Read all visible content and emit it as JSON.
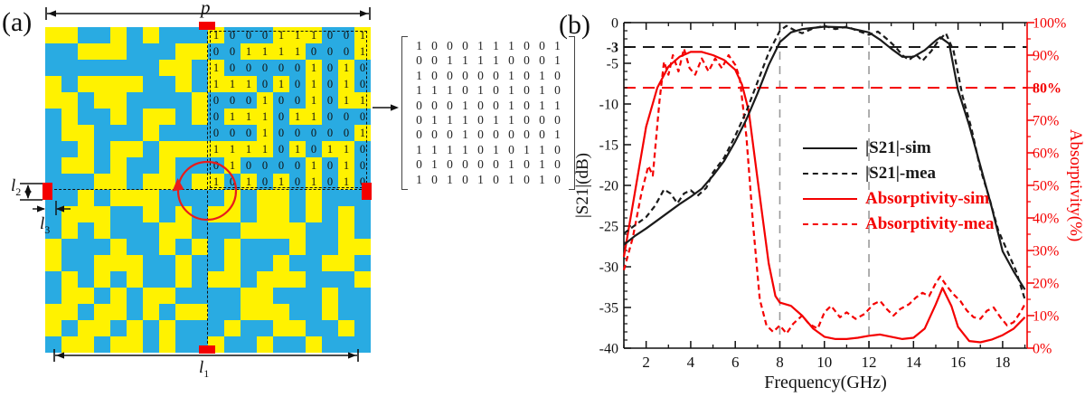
{
  "panel_a": {
    "label": "(a)",
    "colors": {
      "blue": "#29abe2",
      "yellow": "#fff200",
      "red": "#f40000"
    },
    "dims": {
      "p": "p",
      "l1": {
        "base": "l",
        "sub": "1"
      },
      "l2": {
        "base": "l",
        "sub": "2"
      },
      "l3": {
        "base": "l",
        "sub": "3"
      }
    },
    "matrix_rows": [
      "1000111001",
      "0011110001",
      "1000001010",
      "1110101010",
      "0001001011",
      "0111011000",
      "0001000001",
      "1111010110",
      "0100001010",
      "1010101010"
    ],
    "grid_rows": [
      "11001010001000111001",
      "00111000110011110001",
      "00000001101000001010",
      "10111100101110101010",
      "11011000010001001011",
      "01001011010111011000",
      "01100010000001000001",
      "00101101111111010110",
      "01101001000100001010",
      "00011011011010101010",
      "00101110000101101000",
      "01110010101101101010",
      "01010001100011110010",
      "10001001010100010011",
      "10011100100100100110",
      "01010100101101110001",
      "01101011000011000100",
      "11011010110011100100",
      "10110101000100110010",
      "01101101001001001000"
    ]
  },
  "panel_b": {
    "label": "(b)"
  },
  "chart_data": {
    "type": "line",
    "xlabel": "Frequency(GHz)",
    "ylabel_left": "|S21|(dB)",
    "ylabel_right": "Absorptivity(%)",
    "xlim": [
      1,
      19.1
    ],
    "ylim_left": [
      -40,
      0
    ],
    "ylim_right": [
      0,
      100
    ],
    "x_major_ticks": [
      2,
      4,
      6,
      8,
      10,
      12,
      14,
      16,
      18
    ],
    "x_minor_ticks": [
      1,
      3,
      5,
      7,
      9,
      11,
      13,
      15,
      17,
      19
    ],
    "y_left_ticks": [
      {
        "v": 0,
        "t": "0",
        "bold": false
      },
      {
        "v": -3,
        "t": "-3",
        "bold": true
      },
      {
        "v": -5,
        "t": "-5",
        "bold": false
      },
      {
        "v": -10,
        "t": "-10",
        "bold": false
      },
      {
        "v": -15,
        "t": "-15",
        "bold": false
      },
      {
        "v": -20,
        "t": "-20",
        "bold": false
      },
      {
        "v": -25,
        "t": "-25",
        "bold": false
      },
      {
        "v": -30,
        "t": "-30",
        "bold": false
      },
      {
        "v": -35,
        "t": "-35",
        "bold": false
      },
      {
        "v": -40,
        "t": "-40",
        "bold": false
      }
    ],
    "y_right_ticks": [
      {
        "v": 100,
        "t": "100%",
        "bold": false
      },
      {
        "v": 90,
        "t": "90%",
        "bold": false
      },
      {
        "v": 80,
        "t": "80%",
        "bold": true
      },
      {
        "v": 70,
        "t": "70%",
        "bold": false
      },
      {
        "v": 60,
        "t": "60%",
        "bold": false
      },
      {
        "v": 50,
        "t": "50%",
        "bold": false
      },
      {
        "v": 40,
        "t": "40%",
        "bold": false
      },
      {
        "v": 30,
        "t": "30%",
        "bold": false
      },
      {
        "v": 20,
        "t": "20%",
        "bold": false
      },
      {
        "v": 10,
        "t": "10%",
        "bold": false
      },
      {
        "v": 0,
        "t": "0%",
        "bold": false
      }
    ],
    "grid": "off",
    "vertical_gridlines_ghz": [
      8,
      12
    ],
    "reference_lines": [
      {
        "axis": "left",
        "value": -3,
        "color": "#1a1a1a"
      },
      {
        "axis": "right",
        "value": 80,
        "color": "#f40000"
      }
    ],
    "legend_position": "center-right",
    "legend": [
      {
        "label": "|S21|-sim",
        "color": "#1a1a1a",
        "dash": false
      },
      {
        "label": "|S21|-mea",
        "color": "#1a1a1a",
        "dash": true
      },
      {
        "label": "Absorptivity-sim",
        "color": "#f40000",
        "dash": false
      },
      {
        "label": "Absorptivity-mea",
        "color": "#f40000",
        "dash": true
      }
    ],
    "series": [
      {
        "name": "Absorptivity-mea",
        "axis": "right",
        "color": "#f40000",
        "dash": true,
        "points": [
          [
            1,
            24
          ],
          [
            1.4,
            34
          ],
          [
            1.8,
            48
          ],
          [
            2.1,
            56
          ],
          [
            2.3,
            53
          ],
          [
            2.6,
            76
          ],
          [
            2.8,
            88
          ],
          [
            3,
            84
          ],
          [
            3.2,
            90
          ],
          [
            3.45,
            85
          ],
          [
            3.7,
            92
          ],
          [
            3.95,
            86
          ],
          [
            4.2,
            84
          ],
          [
            4.5,
            89
          ],
          [
            4.8,
            85
          ],
          [
            5.1,
            89
          ],
          [
            5.4,
            86
          ],
          [
            5.7,
            90
          ],
          [
            6,
            87
          ],
          [
            6.2,
            83
          ],
          [
            6.5,
            65
          ],
          [
            6.8,
            38
          ],
          [
            7.1,
            15
          ],
          [
            7.4,
            7
          ],
          [
            7.7,
            5
          ],
          [
            8,
            7
          ],
          [
            8.3,
            4.5
          ],
          [
            8.6,
            7.5
          ],
          [
            9,
            10
          ],
          [
            9.3,
            7.5
          ],
          [
            9.7,
            6
          ],
          [
            10,
            11
          ],
          [
            10.3,
            13
          ],
          [
            10.7,
            9.5
          ],
          [
            11,
            11
          ],
          [
            11.4,
            9
          ],
          [
            11.8,
            10.5
          ],
          [
            12.2,
            13.5
          ],
          [
            12.5,
            14.5
          ],
          [
            12.8,
            12
          ],
          [
            13.1,
            10
          ],
          [
            13.4,
            12
          ],
          [
            13.8,
            13.5
          ],
          [
            14.1,
            15.5
          ],
          [
            14.4,
            17
          ],
          [
            14.7,
            16
          ],
          [
            15,
            20
          ],
          [
            15.2,
            22
          ],
          [
            15.5,
            19
          ],
          [
            15.8,
            16.5
          ],
          [
            16.1,
            14.5
          ],
          [
            16.4,
            11.5
          ],
          [
            16.7,
            9.5
          ],
          [
            17,
            9
          ],
          [
            17.3,
            11.5
          ],
          [
            17.6,
            12.5
          ],
          [
            17.9,
            9.5
          ],
          [
            18.2,
            7
          ],
          [
            18.5,
            8
          ],
          [
            18.8,
            11
          ],
          [
            19,
            13.5
          ]
        ]
      },
      {
        "name": "Absorptivity-sim",
        "axis": "right",
        "color": "#f40000",
        "dash": false,
        "points": [
          [
            1,
            28
          ],
          [
            1.5,
            48
          ],
          [
            2,
            68
          ],
          [
            2.5,
            80
          ],
          [
            3,
            86.5
          ],
          [
            3.5,
            89.5
          ],
          [
            4,
            91
          ],
          [
            4.5,
            91
          ],
          [
            5,
            90
          ],
          [
            5.5,
            88.5
          ],
          [
            6,
            85.5
          ],
          [
            6.3,
            81
          ],
          [
            6.6,
            73
          ],
          [
            7,
            52
          ],
          [
            7.5,
            26
          ],
          [
            7.8,
            16
          ],
          [
            8,
            14
          ],
          [
            8.5,
            13
          ],
          [
            9,
            10
          ],
          [
            9.5,
            6
          ],
          [
            10,
            3.5
          ],
          [
            10.5,
            2.8
          ],
          [
            11,
            2.8
          ],
          [
            11.5,
            3.2
          ],
          [
            12,
            3.8
          ],
          [
            12.5,
            4.2
          ],
          [
            13,
            3.5
          ],
          [
            13.5,
            2.8
          ],
          [
            14,
            3.2
          ],
          [
            14.5,
            6
          ],
          [
            15,
            13.5
          ],
          [
            15.3,
            18.5
          ],
          [
            15.7,
            13
          ],
          [
            16,
            6.5
          ],
          [
            16.5,
            2.2
          ],
          [
            17,
            1.8
          ],
          [
            17.5,
            2.6
          ],
          [
            18,
            4
          ],
          [
            18.5,
            6
          ],
          [
            19,
            9.5
          ]
        ]
      },
      {
        "name": "|S21|-mea",
        "axis": "left",
        "color": "#1a1a1a",
        "dash": true,
        "points": [
          [
            1,
            -25.9
          ],
          [
            1.5,
            -24.9
          ],
          [
            2,
            -23.9
          ],
          [
            2.4,
            -22.5
          ],
          [
            2.8,
            -20.5
          ],
          [
            3.1,
            -21
          ],
          [
            3.4,
            -22.2
          ],
          [
            3.7,
            -21
          ],
          [
            4,
            -20.6
          ],
          [
            4.3,
            -21.3
          ],
          [
            4.7,
            -20.3
          ],
          [
            5,
            -18.4
          ],
          [
            5.5,
            -16.6
          ],
          [
            6,
            -13.9
          ],
          [
            6.5,
            -10.9
          ],
          [
            7,
            -7.3
          ],
          [
            7.5,
            -3.7
          ],
          [
            8,
            -1
          ],
          [
            8.3,
            -0.4
          ],
          [
            8.7,
            -1
          ],
          [
            9,
            -1.3
          ],
          [
            9.5,
            -0.7
          ],
          [
            10,
            -0.4
          ],
          [
            10.5,
            -0.8
          ],
          [
            11,
            -0.5
          ],
          [
            11.5,
            -1
          ],
          [
            12,
            -1.5
          ],
          [
            12.4,
            -1.1
          ],
          [
            12.8,
            -2
          ],
          [
            13.2,
            -3
          ],
          [
            13.5,
            -4
          ],
          [
            13.8,
            -4.6
          ],
          [
            14.1,
            -3.9
          ],
          [
            14.4,
            -4.7
          ],
          [
            14.8,
            -3.5
          ],
          [
            15.1,
            -2.3
          ],
          [
            15.45,
            -1.3
          ],
          [
            15.8,
            -3.5
          ],
          [
            16.2,
            -9
          ],
          [
            16.6,
            -13
          ],
          [
            17,
            -18
          ],
          [
            17.4,
            -21.5
          ],
          [
            17.8,
            -25.5
          ],
          [
            18.2,
            -28
          ],
          [
            18.6,
            -30.5
          ],
          [
            19,
            -34
          ]
        ]
      },
      {
        "name": "|S21|-sim",
        "axis": "left",
        "color": "#1a1a1a",
        "dash": false,
        "points": [
          [
            1,
            -27.3
          ],
          [
            1.5,
            -26.2
          ],
          [
            2,
            -25.3
          ],
          [
            2.5,
            -24.3
          ],
          [
            3,
            -23.3
          ],
          [
            3.5,
            -22.3
          ],
          [
            4,
            -21.4
          ],
          [
            4.5,
            -20.4
          ],
          [
            5,
            -18.8
          ],
          [
            5.5,
            -17
          ],
          [
            6,
            -14.6
          ],
          [
            6.5,
            -11.9
          ],
          [
            7,
            -8.7
          ],
          [
            7.5,
            -5.2
          ],
          [
            8,
            -2.4
          ],
          [
            8.5,
            -1.2
          ],
          [
            9,
            -0.8
          ],
          [
            10,
            -0.5
          ],
          [
            11,
            -0.6
          ],
          [
            12,
            -1.2
          ],
          [
            12.5,
            -2.1
          ],
          [
            13,
            -3.2
          ],
          [
            13.5,
            -4.2
          ],
          [
            14,
            -4.2
          ],
          [
            14.5,
            -3.4
          ],
          [
            15,
            -2.2
          ],
          [
            15.2,
            -1.8
          ],
          [
            15.6,
            -2.6
          ],
          [
            16,
            -8.3
          ],
          [
            16.5,
            -12.6
          ],
          [
            17,
            -17.6
          ],
          [
            17.5,
            -22.6
          ],
          [
            18,
            -28.1
          ],
          [
            18.5,
            -30.6
          ],
          [
            19,
            -32.8
          ]
        ]
      }
    ]
  }
}
